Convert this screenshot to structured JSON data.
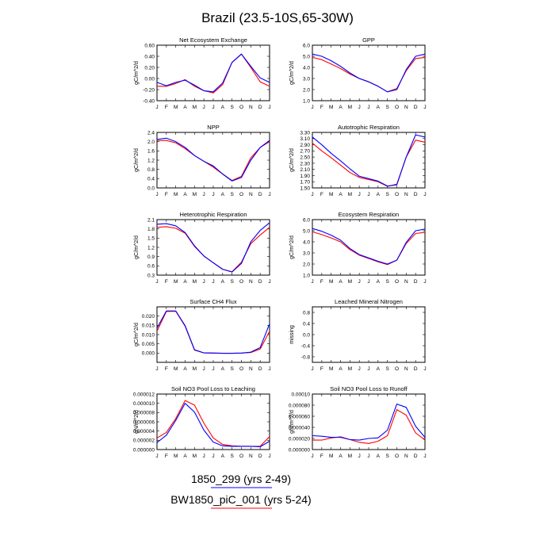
{
  "figure": {
    "title": "Brazil (23.5-10S,65-30W)",
    "legend": [
      {
        "label": "1850_299 (yrs 2-49)",
        "color": "#0000ff"
      },
      {
        "label": "BW1850_piC_001 (yrs 5-24)",
        "color": "#ff0000"
      }
    ]
  },
  "chart_data": [
    {
      "type": "line",
      "title": "Net Ecosystem Exchange",
      "ylabel": "gC/m^2/d",
      "categories": [
        "J",
        "F",
        "M",
        "A",
        "M",
        "J",
        "J",
        "A",
        "S",
        "O",
        "N",
        "D",
        "J"
      ],
      "ylim": [
        -0.4,
        0.6
      ],
      "yticks": [
        -0.4,
        -0.2,
        0,
        0.2,
        0.4,
        0.6
      ],
      "ytick_labels": [
        "-0.40",
        "-0.20",
        "0.00",
        "0.20",
        "0.40",
        "0.60"
      ],
      "series": [
        {
          "color": "#0000ff",
          "values": [
            -0.07,
            -0.13,
            -0.07,
            -0.03,
            -0.12,
            -0.22,
            -0.24,
            -0.08,
            0.29,
            0.44,
            0.22,
            0.01,
            -0.07
          ]
        },
        {
          "color": "#ff0000",
          "values": [
            -0.14,
            -0.14,
            -0.09,
            -0.02,
            -0.14,
            -0.22,
            -0.26,
            -0.11,
            0.29,
            0.44,
            0.2,
            -0.06,
            -0.14
          ]
        }
      ]
    },
    {
      "type": "line",
      "title": "GPP",
      "ylabel": "gC/m^2/d",
      "categories": [
        "J",
        "F",
        "M",
        "A",
        "M",
        "J",
        "J",
        "A",
        "S",
        "O",
        "N",
        "D",
        "J"
      ],
      "ylim": [
        1,
        6
      ],
      "yticks": [
        1,
        2,
        3,
        4,
        5,
        6
      ],
      "ytick_labels": [
        "1.0",
        "2.0",
        "3.0",
        "4.0",
        "5.0",
        "6.0"
      ],
      "series": [
        {
          "color": "#0000ff",
          "values": [
            5.2,
            5.0,
            4.6,
            4.1,
            3.5,
            3.0,
            2.7,
            2.3,
            1.8,
            2.0,
            3.8,
            5.0,
            5.2
          ]
        },
        {
          "color": "#ff0000",
          "values": [
            4.9,
            4.7,
            4.3,
            3.9,
            3.4,
            3.0,
            2.7,
            2.3,
            1.8,
            2.1,
            3.7,
            4.8,
            4.9
          ]
        }
      ]
    },
    {
      "type": "line",
      "title": "NPP",
      "ylabel": "gC/m^2/d",
      "categories": [
        "J",
        "F",
        "M",
        "A",
        "M",
        "J",
        "J",
        "A",
        "S",
        "O",
        "N",
        "D",
        "J"
      ],
      "ylim": [
        0,
        2.4
      ],
      "yticks": [
        0,
        0.4,
        0.8,
        1.2,
        1.6,
        2.0,
        2.4
      ],
      "ytick_labels": [
        "0.0",
        "0.4",
        "0.8",
        "1.2",
        "1.6",
        "2.0",
        "2.4"
      ],
      "series": [
        {
          "color": "#0000ff",
          "values": [
            2.1,
            2.15,
            2.0,
            1.75,
            1.4,
            1.15,
            0.95,
            0.6,
            0.3,
            0.45,
            1.2,
            1.75,
            2.05
          ]
        },
        {
          "color": "#ff0000",
          "values": [
            2.05,
            2.05,
            1.95,
            1.7,
            1.4,
            1.15,
            0.9,
            0.6,
            0.32,
            0.5,
            1.3,
            1.75,
            2.0
          ]
        }
      ]
    },
    {
      "type": "line",
      "title": "Autotrophic Respiration",
      "ylabel": "gC/m^2/d",
      "categories": [
        "J",
        "F",
        "M",
        "A",
        "M",
        "J",
        "J",
        "A",
        "S",
        "O",
        "N",
        "D",
        "J"
      ],
      "ylim": [
        1.5,
        3.3
      ],
      "yticks": [
        1.5,
        1.7,
        1.9,
        2.1,
        2.3,
        2.5,
        2.7,
        2.9,
        3.1,
        3.3
      ],
      "ytick_labels": [
        "1.50",
        "1.70",
        "1.90",
        "2.10",
        "2.30",
        "2.50",
        "2.70",
        "2.90",
        "3.10",
        "3.30"
      ],
      "series": [
        {
          "color": "#0000ff",
          "values": [
            3.15,
            2.9,
            2.62,
            2.38,
            2.12,
            1.88,
            1.8,
            1.72,
            1.56,
            1.6,
            2.5,
            3.22,
            3.15
          ]
        },
        {
          "color": "#ff0000",
          "values": [
            2.95,
            2.7,
            2.48,
            2.24,
            2.0,
            1.84,
            1.77,
            1.7,
            1.55,
            1.62,
            2.5,
            3.05,
            2.98
          ]
        }
      ]
    },
    {
      "type": "line",
      "title": "Heterotrophic Respiration",
      "ylabel": "gC/m^2/d",
      "categories": [
        "J",
        "F",
        "M",
        "A",
        "M",
        "J",
        "J",
        "A",
        "S",
        "O",
        "N",
        "D",
        "J"
      ],
      "ylim": [
        0.3,
        2.1
      ],
      "yticks": [
        0.3,
        0.6,
        0.9,
        1.2,
        1.5,
        1.8,
        2.1
      ],
      "ytick_labels": [
        "0.3",
        "0.6",
        "0.9",
        "1.2",
        "1.5",
        "1.8",
        "2.1"
      ],
      "series": [
        {
          "color": "#0000ff",
          "values": [
            1.95,
            1.97,
            1.9,
            1.68,
            1.25,
            0.92,
            0.7,
            0.49,
            0.4,
            0.68,
            1.38,
            1.75,
            2.0
          ]
        },
        {
          "color": "#ff0000",
          "values": [
            1.85,
            1.87,
            1.82,
            1.66,
            1.23,
            0.92,
            0.7,
            0.49,
            0.41,
            0.72,
            1.32,
            1.6,
            1.85
          ]
        }
      ]
    },
    {
      "type": "line",
      "title": "Ecosystem Respiration",
      "ylabel": "gC/m^2/d",
      "categories": [
        "J",
        "F",
        "M",
        "A",
        "M",
        "J",
        "J",
        "A",
        "S",
        "O",
        "N",
        "D",
        "J"
      ],
      "ylim": [
        1,
        6
      ],
      "yticks": [
        1,
        2,
        3,
        4,
        5,
        6
      ],
      "ytick_labels": [
        "1.0",
        "2.0",
        "3.0",
        "4.0",
        "5.0",
        "6.0"
      ],
      "series": [
        {
          "color": "#0000ff",
          "values": [
            5.2,
            4.95,
            4.6,
            4.15,
            3.4,
            2.85,
            2.55,
            2.25,
            2.0,
            2.35,
            3.95,
            5.0,
            5.15
          ]
        },
        {
          "color": "#ff0000",
          "values": [
            4.9,
            4.65,
            4.35,
            4.0,
            3.3,
            2.8,
            2.5,
            2.2,
            1.95,
            2.35,
            3.85,
            4.75,
            4.85
          ]
        }
      ]
    },
    {
      "type": "line",
      "title": "Surface CH4 Flux",
      "ylabel": "gC/m^2/d",
      "categories": [
        "J",
        "F",
        "M",
        "A",
        "M",
        "J",
        "J",
        "A",
        "S",
        "O",
        "N",
        "D",
        "J"
      ],
      "ylim": [
        -0.005,
        0.025
      ],
      "yticks": [
        0,
        0.005,
        0.01,
        0.015,
        0.02
      ],
      "ytick_labels": [
        "0.000",
        "0.005",
        "0.010",
        "0.015",
        "0.020"
      ],
      "series": [
        {
          "color": "#0000ff",
          "values": [
            0.0135,
            0.0228,
            0.0228,
            0.0148,
            0.0018,
            0.0001,
            0.0,
            -0.0001,
            -0.0001,
            0.0,
            0.0005,
            0.003,
            0.0158
          ]
        },
        {
          "color": "#ff0000",
          "values": [
            0.0118,
            0.0225,
            0.0226,
            0.0145,
            0.0016,
            0.0001,
            0.0,
            -0.0001,
            -0.0001,
            0.0,
            0.0003,
            0.0022,
            0.0118
          ]
        }
      ]
    },
    {
      "type": "line",
      "title": "Leached Mineral Nitrogen",
      "ylabel": "missing",
      "categories": [
        "J",
        "F",
        "M",
        "A",
        "M",
        "J",
        "J",
        "A",
        "S",
        "O",
        "N",
        "D",
        "J"
      ],
      "ylim": [
        -1,
        1
      ],
      "yticks": [
        -0.8,
        -0.4,
        0,
        0.4,
        0.8
      ],
      "ytick_labels": [
        "-0.8",
        "-0.4",
        "0.0",
        "0.4",
        "0.8"
      ],
      "series": []
    },
    {
      "type": "line",
      "title": "Soil NO3 Pool Loss to Leaching",
      "ylabel": "gN/m^2/d",
      "categories": [
        "J",
        "F",
        "M",
        "A",
        "M",
        "J",
        "J",
        "A",
        "S",
        "O",
        "N",
        "D",
        "J"
      ],
      "ylim": [
        0,
        1.2e-05
      ],
      "yticks": [
        0,
        2e-06,
        4e-06,
        6e-06,
        8e-06,
        1e-05,
        1.2e-05
      ],
      "ytick_labels": [
        "0.000000",
        "0.000002",
        "0.000004",
        "0.000006",
        "0.000008",
        "0.000010",
        "0.000012"
      ],
      "series": [
        {
          "color": "#0000ff",
          "values": [
            1.5e-06,
            3.1e-06,
            6.3e-06,
            1e-05,
            8.1e-06,
            4.2e-06,
            1.6e-06,
            8e-07,
            7e-07,
            7e-07,
            7e-07,
            6e-07,
            1.8e-06
          ]
        },
        {
          "color": "#ff0000",
          "values": [
            2.5e-06,
            3.7e-06,
            6.7e-06,
            1.06e-05,
            9.6e-06,
            5.7e-06,
            2.5e-06,
            1.1e-06,
            8e-07,
            7e-07,
            7e-07,
            7e-07,
            2.8e-06
          ]
        }
      ]
    },
    {
      "type": "line",
      "title": "Soil NO3 Pool Loss to Runoff",
      "ylabel": "gN/m^2/d",
      "categories": [
        "J",
        "F",
        "M",
        "A",
        "M",
        "J",
        "J",
        "A",
        "S",
        "O",
        "N",
        "D",
        "J"
      ],
      "ylim": [
        0,
        0.0001
      ],
      "yticks": [
        0,
        2e-05,
        4e-05,
        6e-05,
        8e-05,
        0.0001
      ],
      "ytick_labels": [
        "0.000000",
        "0.000020",
        "0.000040",
        "0.000060",
        "0.000080",
        "0.00010"
      ],
      "series": [
        {
          "color": "#0000ff",
          "values": [
            2.5e-05,
            2.4e-05,
            2.2e-05,
            2.2e-05,
            1.8e-05,
            1.7e-05,
            2e-05,
            2.1e-05,
            3.5e-05,
            8.2e-05,
            7.6e-05,
            4.2e-05,
            2.2e-05
          ]
        },
        {
          "color": "#ff0000",
          "values": [
            1.7e-05,
            1.7e-05,
            2.1e-05,
            2.3e-05,
            1.8e-05,
            1.3e-05,
            1.1e-05,
            1.5e-05,
            2.5e-05,
            7.2e-05,
            6.2e-05,
            3e-05,
            1.7e-05
          ]
        }
      ]
    }
  ]
}
